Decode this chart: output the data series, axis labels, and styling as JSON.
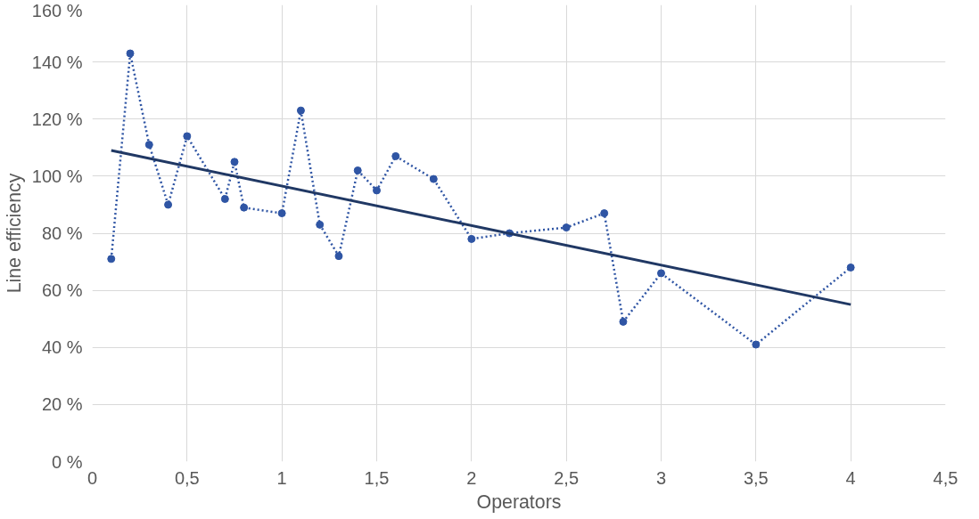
{
  "chart_data": {
    "type": "line",
    "xlabel": "Operators",
    "ylabel": "Line efficiency",
    "xlim": [
      0,
      4.5
    ],
    "ylim": [
      0,
      160
    ],
    "xticks": [
      0,
      {
        "value": 0.5,
        "label": "0,5"
      },
      1,
      {
        "value": 1.5,
        "label": "1,5"
      },
      2,
      {
        "value": 2.5,
        "label": "2,5"
      },
      3,
      {
        "value": 3.5,
        "label": "3,5"
      },
      4,
      {
        "value": 4.5,
        "label": "4,5"
      }
    ],
    "yticks": [
      {
        "value": 0,
        "label": "0 %"
      },
      {
        "value": 20,
        "label": "20 %"
      },
      {
        "value": 40,
        "label": "40 %"
      },
      {
        "value": 60,
        "label": "60 %"
      },
      {
        "value": 80,
        "label": "80 %"
      },
      {
        "value": 100,
        "label": "100 %"
      },
      {
        "value": 120,
        "label": "120 %"
      },
      {
        "value": 140,
        "label": "140 %"
      },
      {
        "value": 160,
        "label": "160 %"
      }
    ],
    "grid": true,
    "series": [
      {
        "color": "#2f55a4",
        "line_style": "dotted",
        "marker": "circle",
        "x": [
          0.1,
          0.2,
          0.3,
          0.4,
          0.5,
          0.7,
          0.75,
          0.8,
          1.0,
          1.1,
          1.2,
          1.3,
          1.4,
          1.5,
          1.6,
          1.8,
          2.0,
          2.2,
          2.5,
          2.7,
          2.8,
          3.0,
          3.5,
          4.0
        ],
        "values": [
          71,
          143,
          111,
          90,
          114,
          92,
          105,
          89,
          87,
          123,
          83,
          72,
          102,
          95,
          107,
          99,
          78,
          80,
          82,
          87,
          49,
          66,
          41,
          68
        ]
      },
      {
        "color": "#203864",
        "line_style": "solid",
        "marker": "none",
        "x": [
          0.1,
          4.0
        ],
        "values": [
          109,
          55
        ]
      }
    ]
  }
}
